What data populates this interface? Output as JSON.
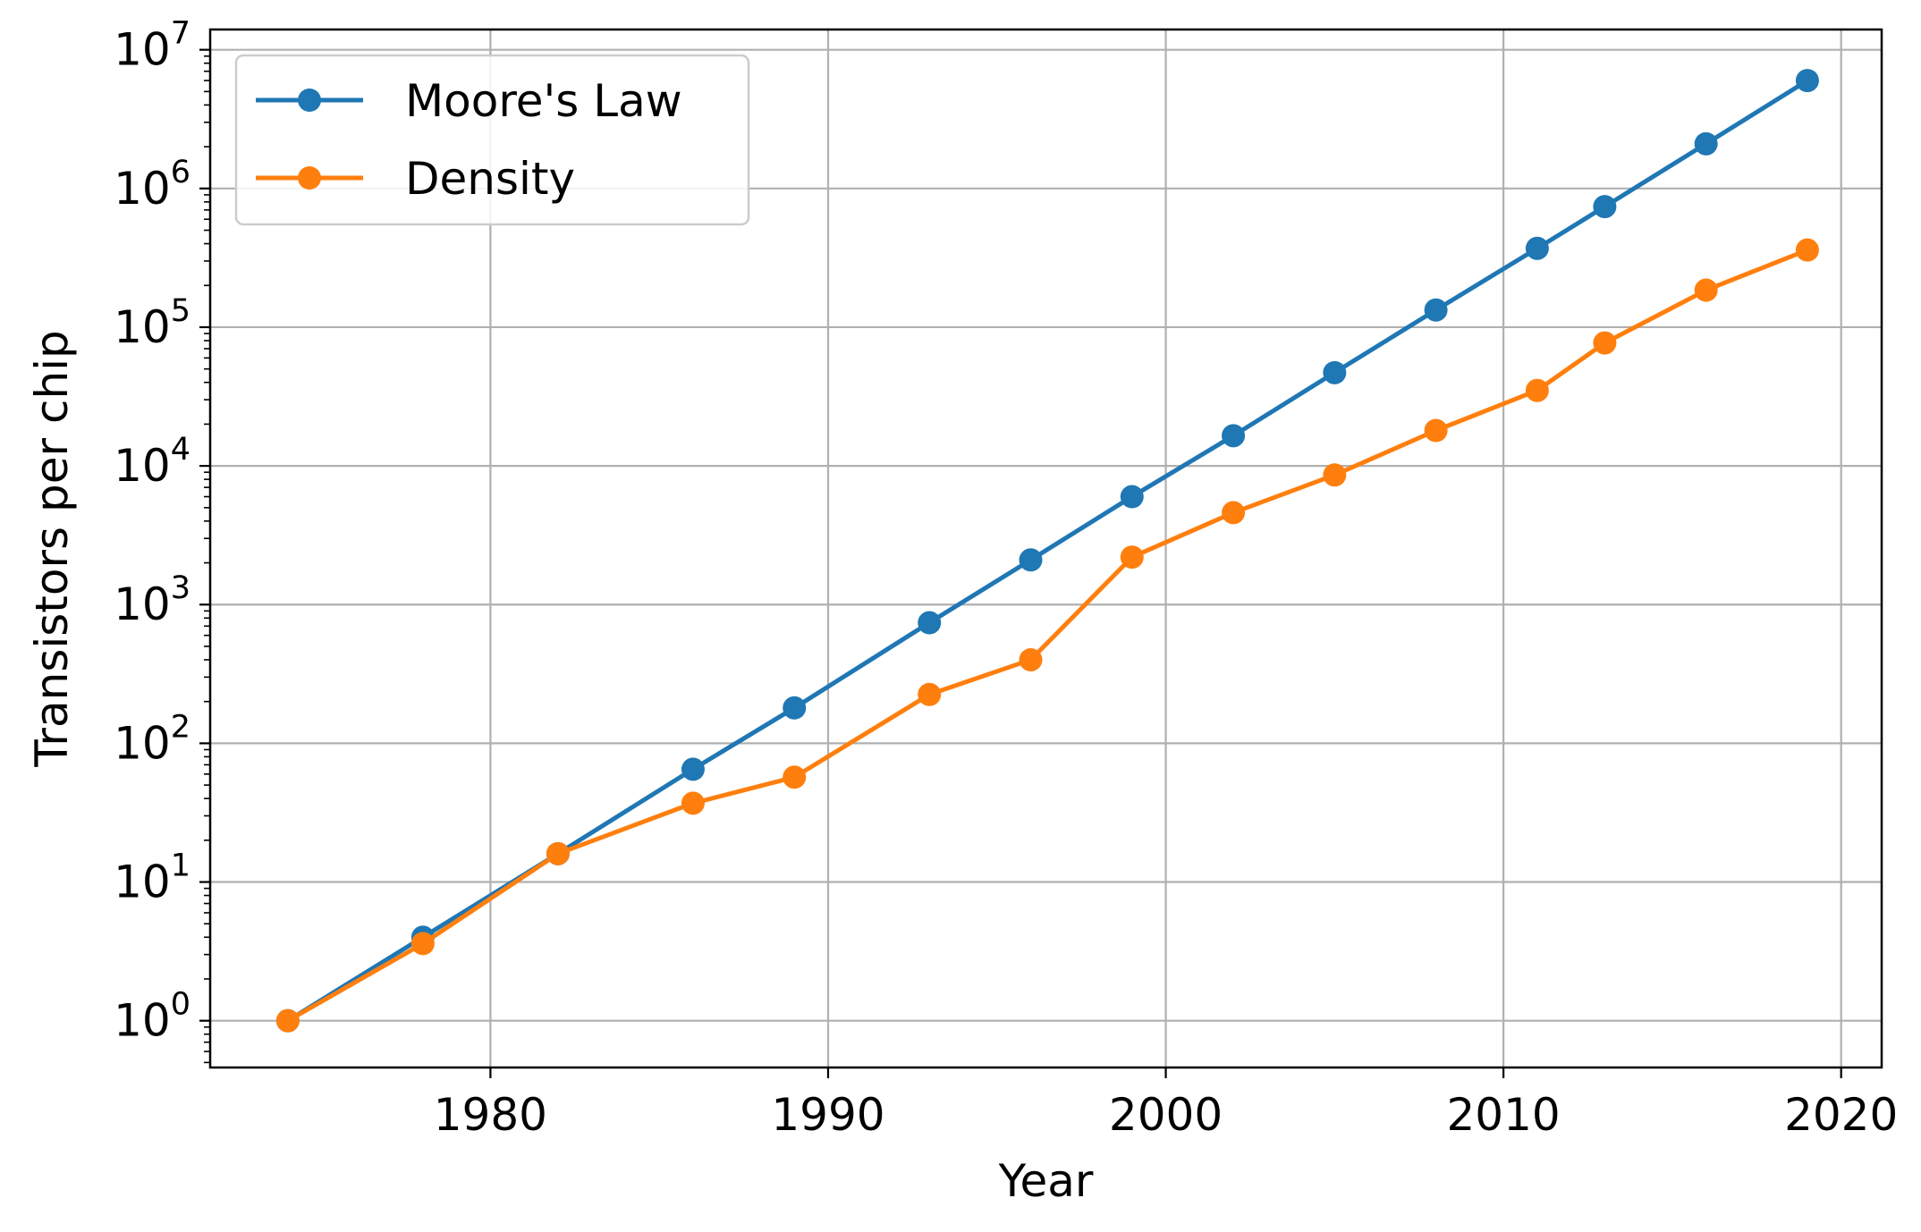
{
  "chart_data": {
    "type": "line",
    "title": "",
    "xlabel": "Year",
    "ylabel": "Transistors per chip",
    "xscale": "linear",
    "yscale": "log",
    "xlim": [
      1971.7,
      2021.2
    ],
    "ylim": [
      0.46,
      14000000
    ],
    "xticks": [
      1980,
      1990,
      2000,
      2010,
      2020
    ],
    "yticks": [
      {
        "value": 1,
        "base": "10",
        "exp": "0"
      },
      {
        "value": 10,
        "base": "10",
        "exp": "1"
      },
      {
        "value": 100,
        "base": "10",
        "exp": "2"
      },
      {
        "value": 1000,
        "base": "10",
        "exp": "3"
      },
      {
        "value": 10000,
        "base": "10",
        "exp": "4"
      },
      {
        "value": 100000,
        "base": "10",
        "exp": "5"
      },
      {
        "value": 1000000,
        "base": "10",
        "exp": "6"
      },
      {
        "value": 10000000,
        "base": "10",
        "exp": "7"
      }
    ],
    "grid": true,
    "legend_position": "top-left",
    "series": [
      {
        "name": "Moore's Law",
        "color": "#1f77b4",
        "marker": "circle",
        "points": [
          {
            "x": 1974,
            "y": 1
          },
          {
            "x": 1978,
            "y": 4
          },
          {
            "x": 1982,
            "y": 16
          },
          {
            "x": 1986,
            "y": 65
          },
          {
            "x": 1989,
            "y": 180
          },
          {
            "x": 1993,
            "y": 740
          },
          {
            "x": 1996,
            "y": 2100
          },
          {
            "x": 1999,
            "y": 6000
          },
          {
            "x": 2002,
            "y": 16500
          },
          {
            "x": 2005,
            "y": 47000
          },
          {
            "x": 2008,
            "y": 133000
          },
          {
            "x": 2011,
            "y": 370000
          },
          {
            "x": 2013,
            "y": 740000
          },
          {
            "x": 2016,
            "y": 2100000
          },
          {
            "x": 2019,
            "y": 6000000
          }
        ]
      },
      {
        "name": "Density",
        "color": "#ff7f0e",
        "marker": "circle",
        "points": [
          {
            "x": 1974,
            "y": 1
          },
          {
            "x": 1978,
            "y": 3.6
          },
          {
            "x": 1982,
            "y": 16
          },
          {
            "x": 1986,
            "y": 37
          },
          {
            "x": 1989,
            "y": 57
          },
          {
            "x": 1993,
            "y": 225
          },
          {
            "x": 1996,
            "y": 400
          },
          {
            "x": 1999,
            "y": 2200
          },
          {
            "x": 2002,
            "y": 4600
          },
          {
            "x": 2005,
            "y": 8600
          },
          {
            "x": 2008,
            "y": 18000
          },
          {
            "x": 2011,
            "y": 35000
          },
          {
            "x": 2013,
            "y": 77000
          },
          {
            "x": 2016,
            "y": 185000
          },
          {
            "x": 2019,
            "y": 360000
          }
        ]
      }
    ]
  }
}
